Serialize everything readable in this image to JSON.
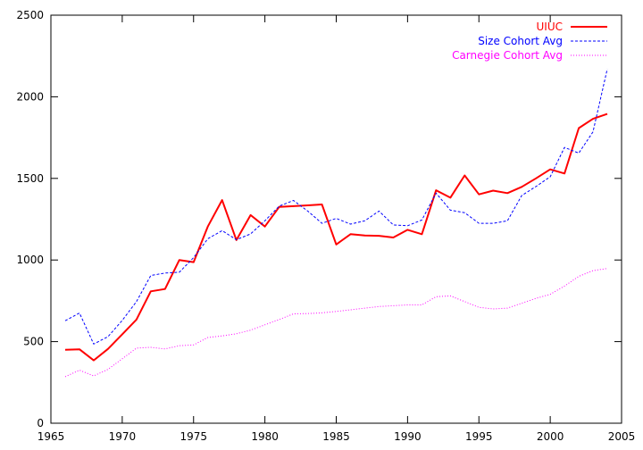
{
  "chart_data": {
    "type": "line",
    "title": "",
    "xlabel": "",
    "ylabel": "",
    "xlim": [
      1965,
      2005
    ],
    "ylim": [
      0,
      2500
    ],
    "xticks": [
      1965,
      1970,
      1975,
      1980,
      1985,
      1990,
      1995,
      2000,
      2005
    ],
    "yticks": [
      0,
      500,
      1000,
      1500,
      2000,
      2500
    ],
    "grid": false,
    "legend_position": "top-right",
    "x": [
      1966,
      1967,
      1968,
      1969,
      1970,
      1971,
      1972,
      1973,
      1974,
      1975,
      1976,
      1977,
      1978,
      1979,
      1980,
      1981,
      1982,
      1983,
      1984,
      1985,
      1986,
      1987,
      1988,
      1989,
      1990,
      1991,
      1992,
      1993,
      1994,
      1995,
      1996,
      1997,
      1998,
      1999,
      2000,
      2001,
      2002,
      2003,
      2004
    ],
    "series": [
      {
        "name": "UIUC",
        "color": "#ff0000",
        "style": "solid",
        "values": [
          450,
          453,
          385,
          455,
          545,
          635,
          808,
          822,
          1000,
          987,
          1205,
          1367,
          1122,
          1275,
          1205,
          1325,
          1330,
          1335,
          1340,
          1095,
          1158,
          1150,
          1148,
          1138,
          1185,
          1158,
          1427,
          1382,
          1518,
          1402,
          1425,
          1410,
          1448,
          1500,
          1555,
          1530,
          1808,
          1865,
          1895
        ]
      },
      {
        "name": "Size Cohort Avg",
        "color": "#0000ff",
        "style": "dashed",
        "values": [
          628,
          675,
          485,
          530,
          630,
          745,
          905,
          920,
          925,
          1015,
          1130,
          1180,
          1125,
          1160,
          1240,
          1330,
          1365,
          1300,
          1225,
          1255,
          1220,
          1240,
          1300,
          1215,
          1210,
          1245,
          1410,
          1305,
          1290,
          1225,
          1225,
          1240,
          1395,
          1450,
          1510,
          1690,
          1655,
          1785,
          2170
        ]
      },
      {
        "name": "Carnegie Cohort Avg",
        "color": "#ff00ff",
        "style": "dotted",
        "values": [
          285,
          325,
          290,
          330,
          395,
          460,
          465,
          455,
          475,
          480,
          525,
          535,
          548,
          570,
          603,
          635,
          670,
          672,
          676,
          685,
          695,
          705,
          715,
          720,
          725,
          725,
          775,
          780,
          745,
          710,
          700,
          705,
          735,
          765,
          790,
          840,
          900,
          935,
          948
        ]
      }
    ]
  }
}
